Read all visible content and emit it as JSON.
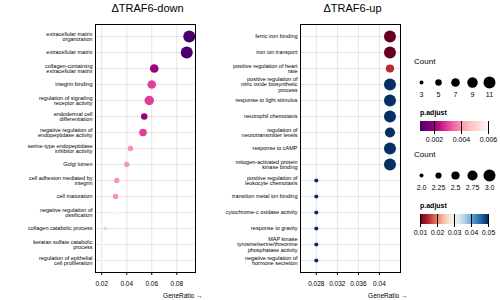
{
  "chart_data": [
    {
      "type": "scatter",
      "title": "ΔTRAF6-down",
      "xlabel": "GeneRatio",
      "categories": [
        "extracellular matrix\norganization",
        "extracellular matrix",
        "collagen-containing\nextracellular matrix",
        "integrin binding",
        "regulation of signaling\nreceptor activity",
        "endodermal cell\ndifferentiation",
        "negative regulation of\nendopeptidase activity",
        "serine-type endopeptidase\ninhibitor activity",
        "Golgi lumen",
        "cell adhesion mediated by\nintegrin",
        "cell maturation",
        "negative regulation of\nossification",
        "collagen catabolic process",
        "keratan sulfate catabolic\nprocess",
        "regulation of epithelial\ncell proliferation"
      ],
      "values": [
        0.09,
        0.088,
        0.062,
        0.06,
        0.058,
        0.054,
        0.053,
        0.043,
        0.04,
        0.032,
        0.031,
        0.032,
        0.023,
        0.021,
        0.021
      ],
      "count": [
        11,
        11,
        7,
        7,
        8,
        5,
        6,
        4,
        4,
        4,
        4,
        4,
        3,
        3,
        3
      ],
      "p_adjust": [
        0.001,
        0.001,
        0.002,
        0.003,
        0.003,
        0.002,
        0.003,
        0.004,
        0.004,
        0.004,
        0.004,
        0.006,
        0.005,
        0.006,
        0.006
      ],
      "xlim": [
        0.015,
        0.095
      ],
      "xticks": [
        0.02,
        0.04,
        0.06,
        0.08
      ],
      "grid": true,
      "size_legend": {
        "title": "Count",
        "values": [
          3,
          5,
          7,
          9,
          11
        ]
      },
      "colorbar": {
        "label": "p.adjust",
        "range": [
          0.001,
          0.006
        ],
        "ticks": [
          0.002,
          0.004,
          0.006
        ]
      }
    },
    {
      "type": "scatter",
      "title": "ΔTRAF6-up",
      "xlabel": "GeneRatio",
      "categories": [
        "ferric iron binding",
        "iron ion transport",
        "positive regulation of heart\nrate",
        "positive regulation of\nnitric oxide biosynthetic\nprocess",
        "response to light stimulus",
        "neutrophil chemotaxis",
        "regulation of\nneurotransmitter levels",
        "response to cAMP",
        "mitogen-activated protein\nkinase binding",
        "positive regulation of\nleukocyte chemotaxis",
        "transition metal ion binding",
        "cytochrome-c oxidase activity",
        "response to gravity",
        "MAP kinase\ntyrosine/serine/threonine\nphosphatase activity",
        "negative regulation of\nhormone secretion"
      ],
      "values": [
        0.042,
        0.042,
        0.042,
        0.042,
        0.042,
        0.042,
        0.042,
        0.042,
        0.042,
        0.028,
        0.028,
        0.028,
        0.028,
        0.028,
        0.028
      ],
      "count": [
        3.0,
        3.0,
        2.5,
        3.0,
        3.0,
        3.0,
        2.75,
        3.0,
        3.0,
        2.0,
        2.0,
        2.0,
        2.0,
        2.0,
        2.0
      ],
      "p_adjust": [
        0.01,
        0.01,
        0.015,
        0.05,
        0.05,
        0.05,
        0.05,
        0.05,
        0.05,
        0.05,
        0.05,
        0.05,
        0.05,
        0.05,
        0.05
      ],
      "xlim": [
        0.025,
        0.044
      ],
      "xticks": [
        0.028,
        0.032,
        0.036,
        0.04
      ],
      "grid": true,
      "size_legend": {
        "title": "Count",
        "values": [
          {
            "value": 2,
            "label": "2.0"
          },
          {
            "value": 2.25,
            "label": "2.25"
          },
          {
            "value": 2.5,
            "label": "2.5"
          },
          {
            "value": 2.75,
            "label": "2.75"
          },
          {
            "value": 3,
            "label": "3.0"
          }
        ]
      },
      "colorbar": {
        "label": "p.adjust",
        "range": [
          0.01,
          0.05
        ],
        "ticks": [
          0.01,
          0.02,
          0.03,
          0.04,
          0.05
        ]
      }
    }
  ]
}
